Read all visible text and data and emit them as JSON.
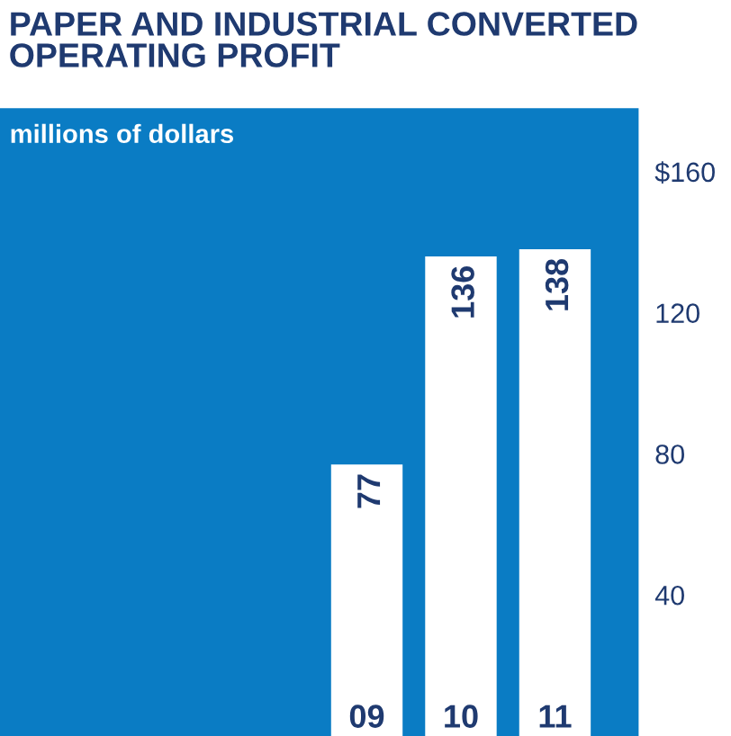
{
  "chart_data": {
    "type": "bar",
    "title": "PAPER AND INDUSTRIAL CONVERTED\nOPERATING PROFIT",
    "subtitle": "millions of dollars",
    "categories": [
      "09",
      "10",
      "11"
    ],
    "values": [
      77,
      136,
      138
    ],
    "color": "#ffffff",
    "data_labels": true,
    "ylim": [
      0,
      178
    ],
    "yticks": [
      {
        "value": 40,
        "label": "40"
      },
      {
        "value": 80,
        "label": "80"
      },
      {
        "value": 120,
        "label": "120"
      },
      {
        "value": 160,
        "label": "$160"
      }
    ],
    "grid": false
  }
}
